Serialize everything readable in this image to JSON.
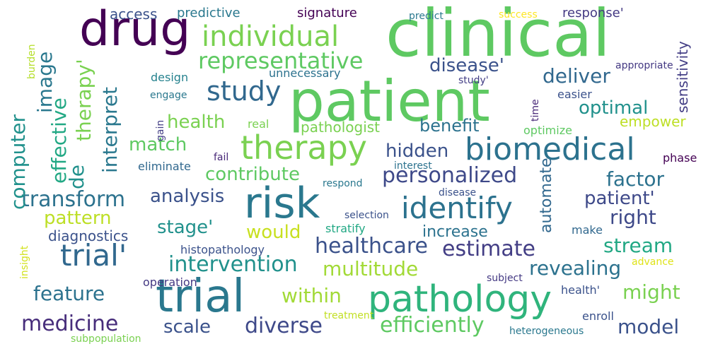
{
  "words": [
    {
      "t": "clinical",
      "c": "#5ec962"
    },
    {
      "t": "patient",
      "c": "#5ec962"
    },
    {
      "t": "drug",
      "c": "#440154"
    },
    {
      "t": "trial",
      "c": "#2a788e"
    },
    {
      "t": "risk",
      "c": "#2a788e"
    },
    {
      "t": "pathology",
      "c": "#2fb47c"
    },
    {
      "t": "therapy",
      "c": "#7ad151"
    },
    {
      "t": "biomedical",
      "c": "#2c728e"
    },
    {
      "t": "identify",
      "c": "#2c728e"
    },
    {
      "t": "individual",
      "c": "#7ad151"
    },
    {
      "t": "study",
      "c": "#31688e"
    },
    {
      "t": "trial'",
      "c": "#31688e"
    },
    {
      "t": "representative",
      "c": "#5ec962"
    },
    {
      "t": "healthcare",
      "c": "#3b528b"
    },
    {
      "t": "personalized",
      "c": "#3e4989"
    },
    {
      "t": "estimate",
      "c": "#433e85"
    },
    {
      "t": "transform",
      "c": "#2c728e"
    },
    {
      "t": "medicine",
      "c": "#472d7b"
    },
    {
      "t": "diverse",
      "c": "#3e4989"
    },
    {
      "t": "efficiently",
      "c": "#5ec962"
    },
    {
      "t": "intervention",
      "c": "#21918c"
    },
    {
      "t": "multitude",
      "c": "#a2da37"
    },
    {
      "t": "revealing",
      "c": "#2c728e"
    },
    {
      "t": "stream",
      "c": "#22a884"
    },
    {
      "t": "model",
      "c": "#3b528b"
    },
    {
      "t": "feature",
      "c": "#2c728e"
    },
    {
      "t": "within",
      "c": "#a2da37"
    },
    {
      "t": "might",
      "c": "#7ad151"
    },
    {
      "t": "scale",
      "c": "#3b528b"
    },
    {
      "t": "contribute",
      "c": "#5ec962"
    },
    {
      "t": "disease'",
      "c": "#3b528b"
    },
    {
      "t": "deliver",
      "c": "#31688e"
    },
    {
      "t": "optimal",
      "c": "#21918c"
    },
    {
      "t": "health",
      "c": "#7ad151"
    },
    {
      "t": "benefit",
      "c": "#2c728e"
    },
    {
      "t": "hidden",
      "c": "#3b528b"
    },
    {
      "t": "factor",
      "c": "#2c728e"
    },
    {
      "t": "patient'",
      "c": "#3e4989"
    },
    {
      "t": "right",
      "c": "#3e4989"
    },
    {
      "t": "analysis",
      "c": "#3b528b"
    },
    {
      "t": "pattern",
      "c": "#bddf26"
    },
    {
      "t": "stage'",
      "c": "#21918c"
    },
    {
      "t": "would",
      "c": "#c8e020"
    },
    {
      "t": "match",
      "c": "#5ec962"
    },
    {
      "t": "pathologist",
      "c": "#7ad151"
    },
    {
      "t": "empower",
      "c": "#bddf26"
    },
    {
      "t": "access",
      "c": "#3b528b"
    },
    {
      "t": "predictive",
      "c": "#2a788e"
    },
    {
      "t": "signature",
      "c": "#440154"
    },
    {
      "t": "response'",
      "c": "#443983"
    },
    {
      "t": "increase",
      "c": "#2c728e"
    },
    {
      "t": "diagnostics",
      "c": "#3b528b"
    },
    {
      "t": "histopathology",
      "c": "#3b528b"
    },
    {
      "t": "operation",
      "c": "#443983"
    },
    {
      "t": "computer",
      "c": "#21918c"
    },
    {
      "t": "image",
      "c": "#2a788e"
    },
    {
      "t": "effective",
      "c": "#22a884"
    },
    {
      "t": "therapy'",
      "c": "#7ad151"
    },
    {
      "t": "interpret",
      "c": "#2a788e"
    },
    {
      "t": "de",
      "c": "#21918c"
    },
    {
      "t": "sensitivity",
      "c": "#433e85"
    },
    {
      "t": "automate",
      "c": "#31688e"
    },
    {
      "t": "predict",
      "c": "#2a788e"
    },
    {
      "t": "success",
      "c": "#fde725"
    },
    {
      "t": "unnecessary",
      "c": "#2c728e"
    },
    {
      "t": "design",
      "c": "#26828e"
    },
    {
      "t": "engage",
      "c": "#2a788e"
    },
    {
      "t": "appropriate",
      "c": "#443983"
    },
    {
      "t": "study'",
      "c": "#433e85"
    },
    {
      "t": "easier",
      "c": "#3b528b"
    },
    {
      "t": "real",
      "c": "#7ad151"
    },
    {
      "t": "optimize",
      "c": "#5ec962"
    },
    {
      "t": "time",
      "c": "#482878"
    },
    {
      "t": "gain",
      "c": "#433e85"
    },
    {
      "t": "eliminate",
      "c": "#31688e"
    },
    {
      "t": "fail",
      "c": "#482878"
    },
    {
      "t": "interest",
      "c": "#2c728e"
    },
    {
      "t": "phase",
      "c": "#440154"
    },
    {
      "t": "respond",
      "c": "#2a788e"
    },
    {
      "t": "disease",
      "c": "#3b528b"
    },
    {
      "t": "selection",
      "c": "#3b528b"
    },
    {
      "t": "stratify",
      "c": "#22a884"
    },
    {
      "t": "make",
      "c": "#31688e"
    },
    {
      "t": "advance",
      "c": "#dfe318"
    },
    {
      "t": "subject",
      "c": "#443983"
    },
    {
      "t": "health'",
      "c": "#3b528b"
    },
    {
      "t": "treatment",
      "c": "#c2df23"
    },
    {
      "t": "enroll",
      "c": "#3b528b"
    },
    {
      "t": "subpopulation",
      "c": "#7ad151"
    },
    {
      "t": "heterogeneous",
      "c": "#2a788e"
    },
    {
      "t": "burden",
      "c": "#b5de2b"
    },
    {
      "t": "insight",
      "c": "#d2e21b"
    }
  ]
}
